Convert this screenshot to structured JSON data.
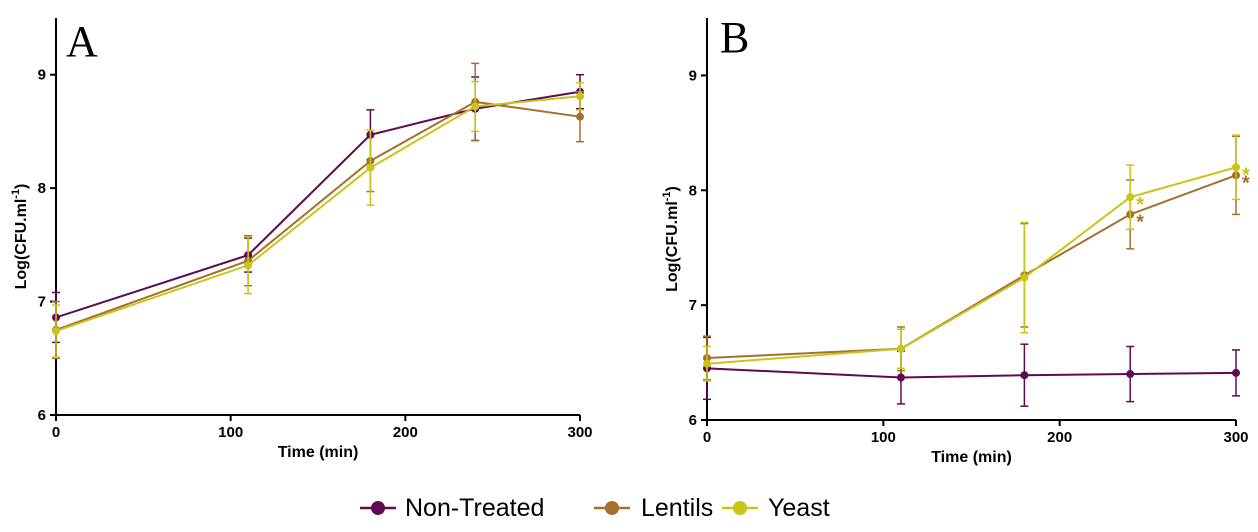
{
  "colors": {
    "non_treated": "#5e0b52",
    "lentils": "#a6702a",
    "yeast": "#c9c41a"
  },
  "legend": [
    {
      "name": "Non-Treated",
      "color_key": "non_treated"
    },
    {
      "name": "Lentils",
      "color_key": "lentils"
    },
    {
      "name": "Yeast",
      "color_key": "yeast"
    }
  ],
  "chart_data": [
    {
      "type": "line",
      "panel_label": "A",
      "xlabel": "Time (min)",
      "ylabel": "Log(CFU.ml-1)",
      "ylabel_main": "Log(CFU.ml",
      "ylabel_sup": "-1",
      "ylabel_end": ")",
      "xlim": [
        0,
        300
      ],
      "ylim": [
        6,
        9.5
      ],
      "xticks": [
        0,
        100,
        200,
        300
      ],
      "yticks": [
        6,
        7,
        8,
        9
      ],
      "grid": false,
      "x": [
        0,
        110,
        180,
        240,
        300
      ],
      "series": [
        {
          "name": "Non-Treated",
          "color_key": "non_treated",
          "values": [
            6.86,
            7.41,
            8.47,
            8.7,
            8.85
          ],
          "errors": [
            0.22,
            0.15,
            0.22,
            0.28,
            0.15
          ]
        },
        {
          "name": "Lentils",
          "color_key": "lentils",
          "values": [
            6.75,
            7.36,
            8.24,
            8.76,
            8.63
          ],
          "errors": [
            0.25,
            0.22,
            0.27,
            0.34,
            0.22
          ]
        },
        {
          "name": "Yeast",
          "color_key": "yeast",
          "values": [
            6.74,
            7.32,
            8.18,
            8.72,
            8.81
          ],
          "errors": [
            0.23,
            0.25,
            0.33,
            0.22,
            0.12
          ]
        }
      ],
      "stars": []
    },
    {
      "type": "line",
      "panel_label": "B",
      "xlabel": "Time (min)",
      "ylabel": "Log(CFU.ml-1)",
      "ylabel_main": "Log(CFU.ml",
      "ylabel_sup": "-1",
      "ylabel_end": ")",
      "xlim": [
        0,
        300
      ],
      "ylim": [
        6,
        9.5
      ],
      "xticks": [
        0,
        100,
        200,
        300
      ],
      "yticks": [
        6,
        7,
        8,
        9
      ],
      "grid": false,
      "x": [
        0,
        110,
        180,
        240,
        300
      ],
      "series": [
        {
          "name": "Non-Treated",
          "color_key": "non_treated",
          "values": [
            6.45,
            6.37,
            6.39,
            6.4,
            6.41
          ],
          "errors": [
            0.27,
            0.23,
            0.27,
            0.24,
            0.2
          ]
        },
        {
          "name": "Lentils",
          "color_key": "lentils",
          "values": [
            6.54,
            6.62,
            7.26,
            7.79,
            8.13
          ],
          "errors": [
            0.19,
            0.19,
            0.45,
            0.3,
            0.34
          ]
        },
        {
          "name": "Yeast",
          "color_key": "yeast",
          "values": [
            6.49,
            6.62,
            7.24,
            7.94,
            8.2
          ],
          "errors": [
            0.15,
            0.17,
            0.48,
            0.28,
            0.28
          ]
        }
      ],
      "stars": [
        {
          "series": "Yeast",
          "x": 240,
          "text": "*"
        },
        {
          "series": "Lentils",
          "x": 240,
          "text": "*"
        },
        {
          "series": "Yeast",
          "x": 300,
          "text": "*"
        },
        {
          "series": "Lentils",
          "x": 300,
          "text": "*"
        }
      ]
    }
  ]
}
